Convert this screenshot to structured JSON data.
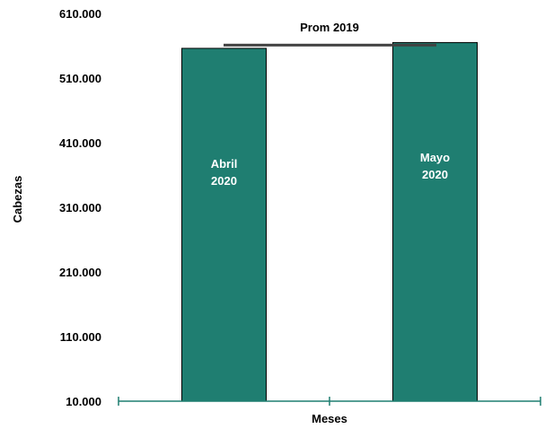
{
  "chart_data": {
    "type": "bar",
    "ylabel": "Cabezas",
    "xlabel": "Meses",
    "ylim": [
      10000,
      610000
    ],
    "yticks": [
      10000,
      110000,
      210000,
      310000,
      410000,
      510000,
      610000
    ],
    "ytick_labels": [
      "10.000",
      "110.000",
      "210.000",
      "310.000",
      "410.000",
      "510.000",
      "610.000"
    ],
    "categories": [
      [
        "Abril",
        "2020"
      ],
      [
        "Mayo",
        "2020"
      ]
    ],
    "values": [
      556000,
      565000
    ],
    "reference_line": {
      "label": "Prom 2019",
      "value": 561000
    },
    "colors": {
      "bar": "#1f7e71",
      "bar_edge": "#000000",
      "axis": "#1f7e71",
      "reference": "#404040"
    },
    "grid": false,
    "legend": "none"
  }
}
